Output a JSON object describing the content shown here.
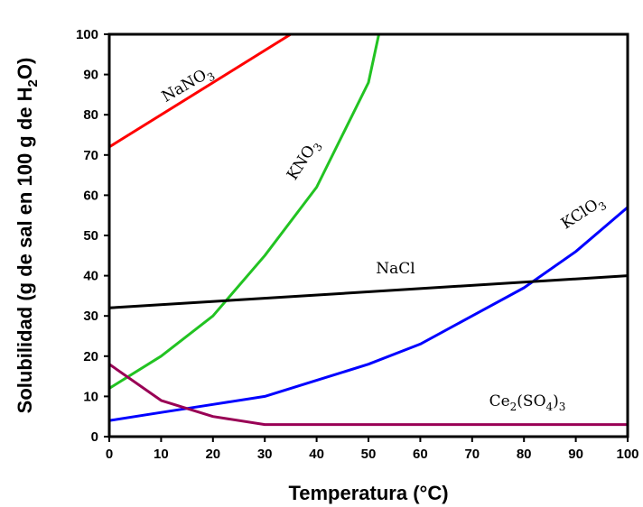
{
  "chart_data": {
    "type": "line",
    "xlabel": "Temperatura  (°C)",
    "ylabel_parts": [
      "Solubilidad (g de sal en 100 g de H",
      "2",
      "O)"
    ],
    "xlim": [
      0,
      100
    ],
    "ylim": [
      0,
      100
    ],
    "xticks": [
      0,
      10,
      20,
      30,
      40,
      50,
      60,
      70,
      80,
      90,
      100
    ],
    "yticks": [
      0,
      10,
      20,
      30,
      40,
      50,
      60,
      70,
      80,
      90,
      100
    ],
    "grid": false,
    "series": [
      {
        "name": "NaNO3",
        "label_parts": [
          "NaNO",
          "3"
        ],
        "color": "#ff0000",
        "x": [
          0,
          35
        ],
        "y": [
          72,
          100
        ]
      },
      {
        "name": "KNO3",
        "label_parts": [
          "KNO",
          "3"
        ],
        "color": "#22c322",
        "x": [
          0,
          10,
          20,
          30,
          40,
          50,
          52
        ],
        "y": [
          12,
          20,
          30,
          45,
          62,
          88,
          100
        ]
      },
      {
        "name": "KClO3",
        "label_parts": [
          "KClO",
          "3"
        ],
        "color": "#0000ff",
        "x": [
          0,
          10,
          20,
          30,
          40,
          50,
          60,
          70,
          80,
          90,
          100
        ],
        "y": [
          4,
          6,
          8,
          10,
          14,
          18,
          23,
          30,
          37,
          46,
          57
        ]
      },
      {
        "name": "NaCl",
        "label_parts": [
          "NaCl"
        ],
        "color": "#000000",
        "x": [
          0,
          100
        ],
        "y": [
          32,
          40
        ]
      },
      {
        "name": "Ce2(SO4)3",
        "label_parts": [
          "Ce",
          "2",
          "(SO",
          "4",
          ")",
          "3"
        ],
        "color": "#990055",
        "x": [
          0,
          10,
          20,
          30,
          40,
          50,
          60,
          70,
          80,
          90,
          100
        ],
        "y": [
          18,
          9,
          5,
          3,
          3,
          3,
          3,
          3,
          3,
          3,
          3
        ]
      }
    ]
  }
}
